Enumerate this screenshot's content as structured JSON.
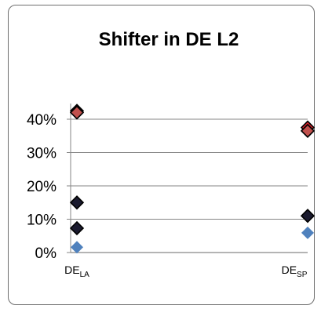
{
  "chart_data": {
    "type": "scatter",
    "title": "Shifter in DE L2",
    "xlabel": "",
    "ylabel": "",
    "ylim": [
      0,
      45
    ],
    "y_ticks": [
      "0%",
      "10%",
      "20%",
      "30%",
      "40%"
    ],
    "y_tick_values": [
      0,
      10,
      20,
      30,
      40
    ],
    "grid": true,
    "legend": "none",
    "categories": [
      {
        "main": "DE",
        "sub": "LA"
      },
      {
        "main": "DE",
        "sub": "SP"
      }
    ],
    "series": [
      {
        "color": "#e0202a",
        "values": [
          42.5,
          37.5
        ]
      },
      {
        "color": "#c0504d",
        "values": [
          42.0,
          36.5
        ]
      },
      {
        "color": "#1a1a2e",
        "values": [
          15.0,
          11.0
        ]
      },
      {
        "color": "#1a1a2e",
        "values": [
          7.3,
          null
        ]
      },
      {
        "color": "#4f81bd",
        "values": [
          1.6,
          5.9
        ]
      }
    ],
    "colors": {
      "marker_outline": "#000000",
      "grid": "#868686",
      "axis": "#868686"
    }
  }
}
